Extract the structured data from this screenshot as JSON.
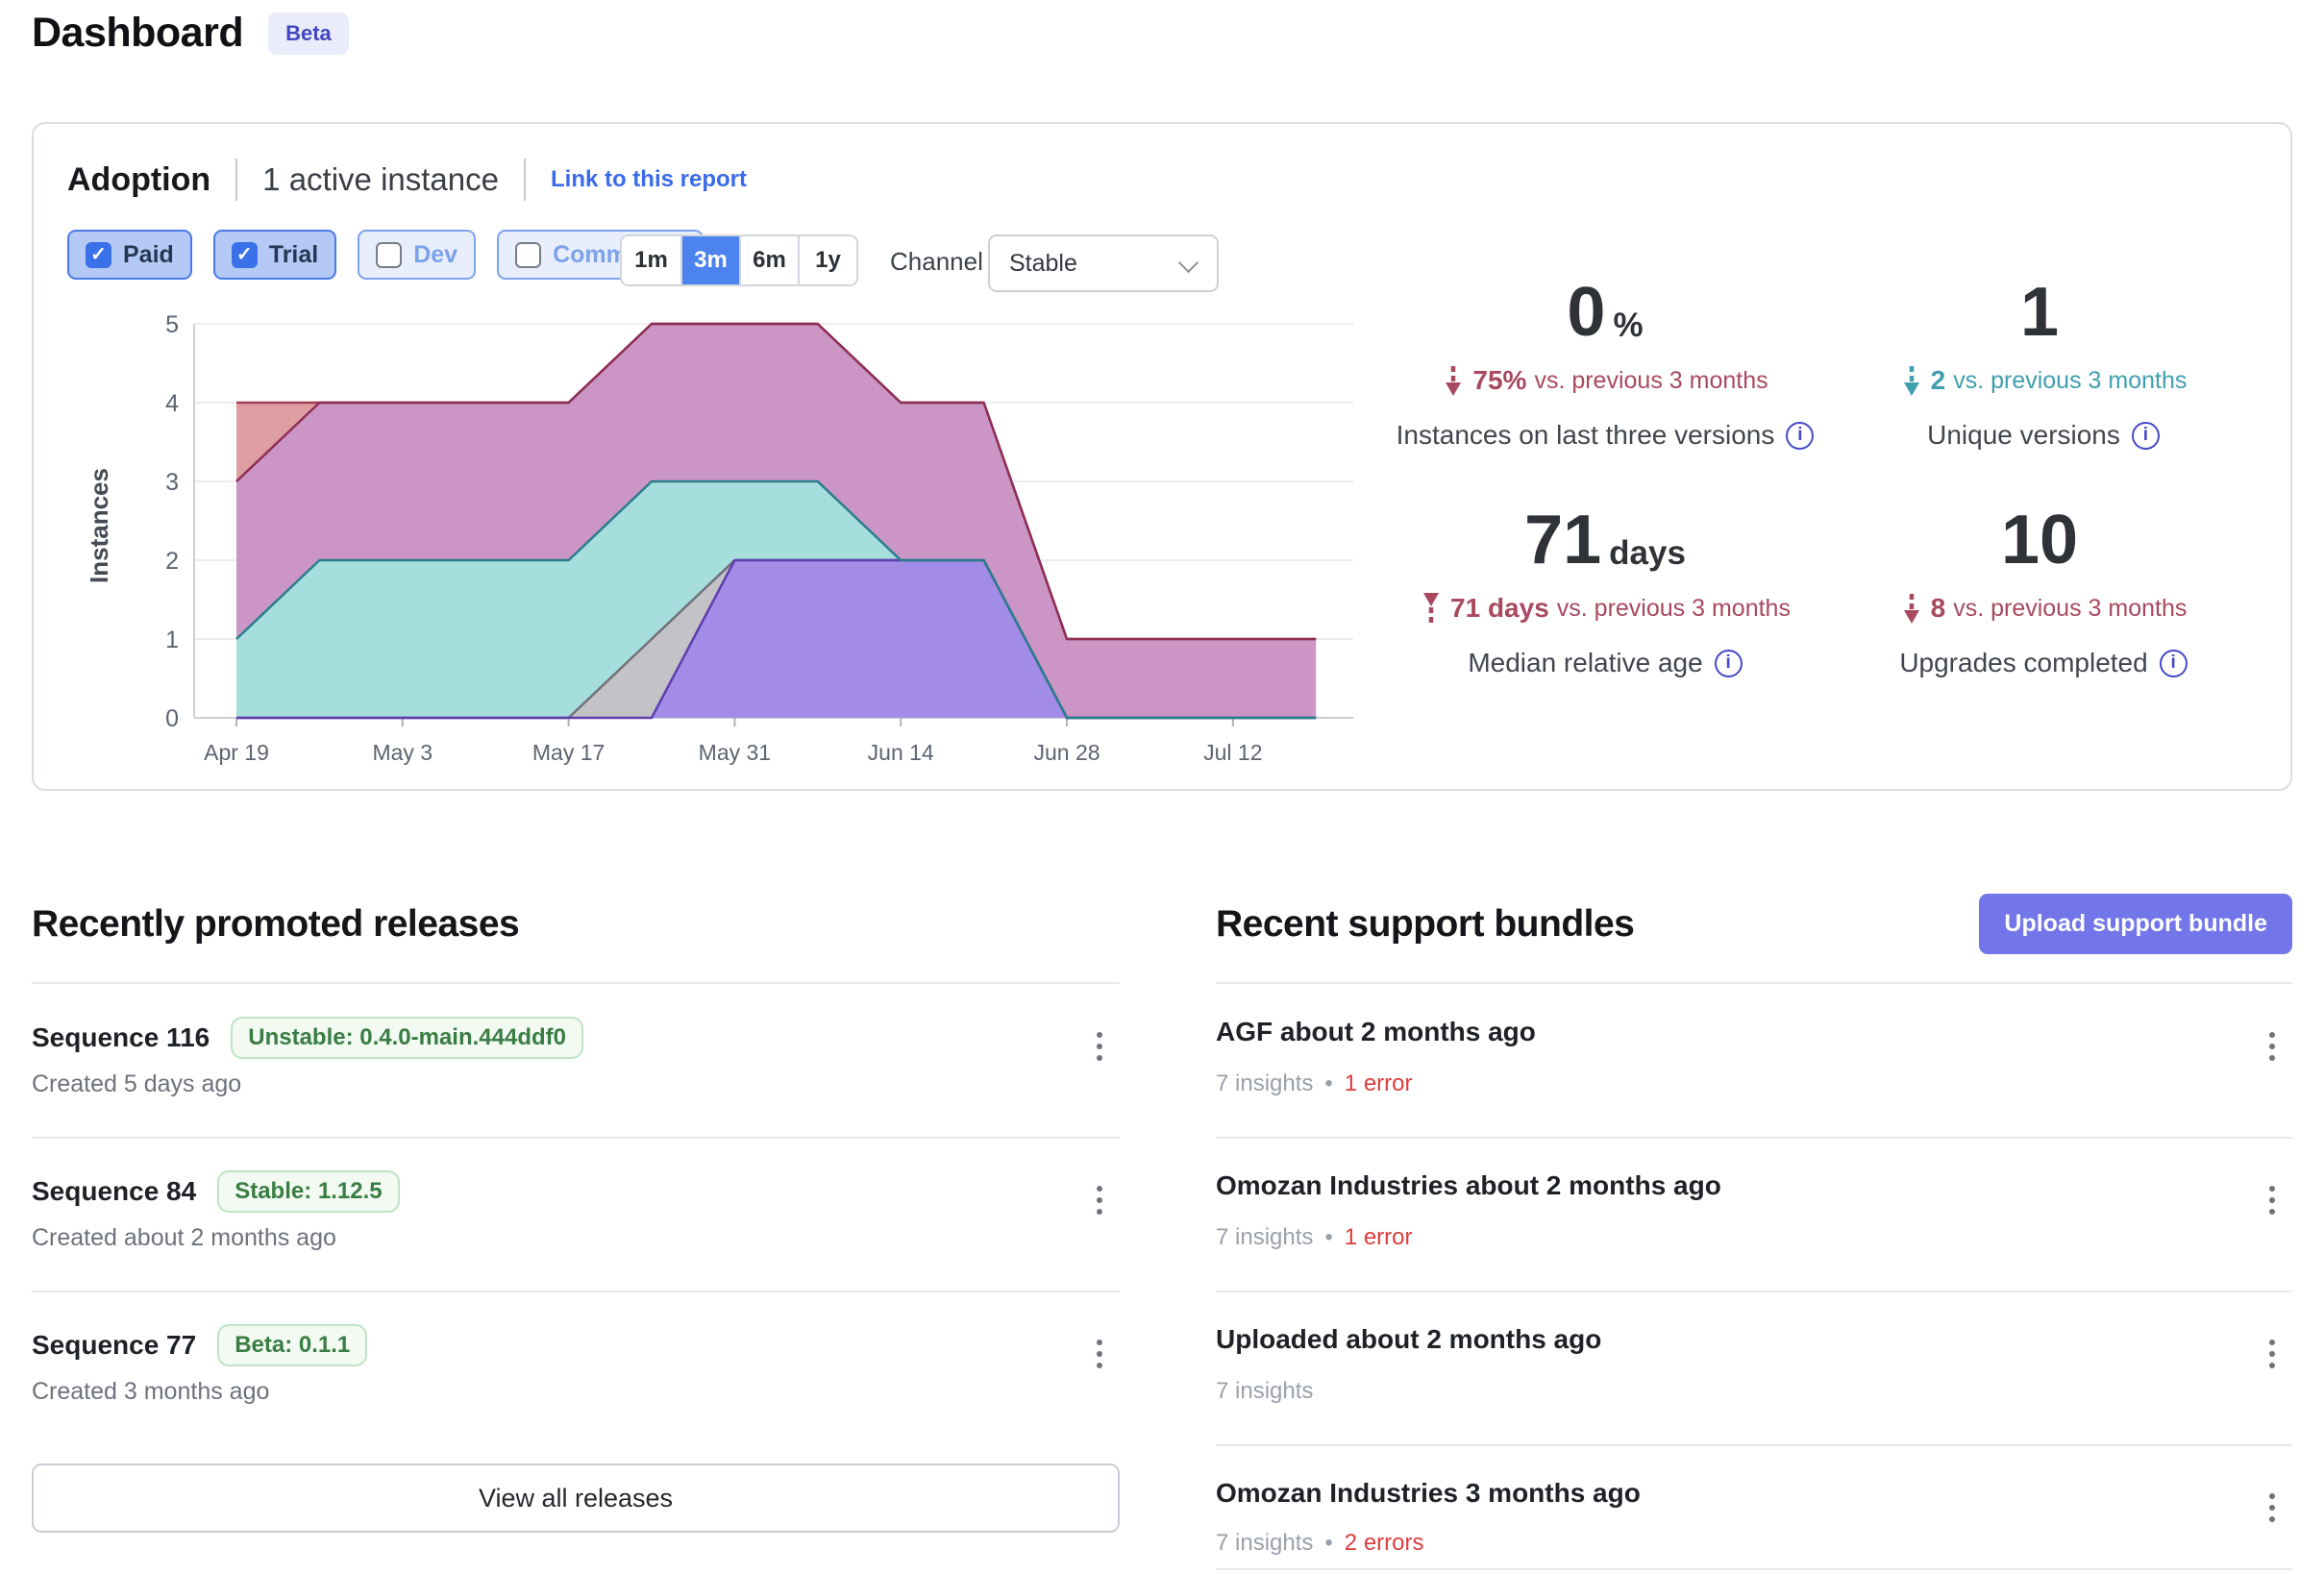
{
  "page": {
    "title": "Dashboard",
    "badge": "Beta"
  },
  "adoption": {
    "title": "Adoption",
    "active_count": "1 active instance",
    "link": "Link to this report",
    "filters": [
      {
        "label": "Paid",
        "checked": true
      },
      {
        "label": "Trial",
        "checked": true
      },
      {
        "label": "Dev",
        "checked": false
      },
      {
        "label": "Community",
        "checked": false
      }
    ],
    "ranges": [
      {
        "label": "1m",
        "selected": false
      },
      {
        "label": "3m",
        "selected": true
      },
      {
        "label": "6m",
        "selected": false
      },
      {
        "label": "1y",
        "selected": false
      }
    ],
    "channel_label": "Channel",
    "channel_value": "Stable",
    "stats": [
      {
        "value": "0",
        "unit": "%",
        "trend": "down",
        "tone": "rose",
        "delta": "75%",
        "delta_suffix": "vs. previous 3 months",
        "label": "Instances on last three versions"
      },
      {
        "value": "1",
        "unit": "",
        "trend": "down",
        "tone": "teal",
        "delta": "2",
        "delta_suffix": "vs. previous 3 months",
        "label": "Unique versions"
      },
      {
        "value": "71",
        "unit": "days",
        "trend": "up",
        "tone": "rose",
        "delta": "71 days",
        "delta_suffix": "vs. previous 3 months",
        "label": "Median relative age"
      },
      {
        "value": "10",
        "unit": "",
        "trend": "down",
        "tone": "rose",
        "delta": "8",
        "delta_suffix": "vs. previous 3 months",
        "label": "Upgrades completed"
      }
    ]
  },
  "chart_data": {
    "type": "area",
    "stacked": true,
    "ylabel": "Instances",
    "ylim": [
      0,
      5
    ],
    "grid": true,
    "legend": "none",
    "x": [
      "Apr 19",
      "Apr 26",
      "May 3",
      "May 10",
      "May 17",
      "May 24",
      "May 31",
      "Jun 7",
      "Jun 14",
      "Jun 21",
      "Jun 28",
      "Jul 5",
      "Jul 12",
      "Jul 19"
    ],
    "x_tick_labels": [
      "Apr 19",
      "May 3",
      "May 17",
      "May 31",
      "Jun 14",
      "Jun 28",
      "Jul 12"
    ],
    "y_tick_labels": [
      "0",
      "1",
      "2",
      "3",
      "4",
      "5"
    ],
    "series": [
      {
        "name": "version-violet",
        "fill": "#a38ce8",
        "stroke": "#5e3dae",
        "values": [
          0,
          0,
          0,
          0,
          0,
          0,
          2,
          2,
          2,
          2,
          0,
          0,
          0,
          0
        ]
      },
      {
        "name": "version-gray",
        "fill": "#c3c2c7",
        "stroke": "#71707a",
        "values": [
          0,
          0,
          0,
          0,
          0,
          1,
          0,
          0,
          0,
          0,
          0,
          0,
          0,
          0
        ]
      },
      {
        "name": "version-teal",
        "fill": "#a5dedd",
        "stroke": "#2a7d8d",
        "values": [
          1,
          2,
          2,
          2,
          2,
          2,
          1,
          1,
          0,
          0,
          0,
          0,
          0,
          0
        ]
      },
      {
        "name": "version-magenta",
        "fill": "#cb96c5",
        "stroke": "#8e2e56",
        "values": [
          2,
          2,
          2,
          2,
          2,
          2,
          2,
          2,
          2,
          2,
          1,
          1,
          1,
          1
        ]
      },
      {
        "name": "version-salmon",
        "fill": "#df9ea1",
        "stroke": "#a23d55",
        "values": [
          1,
          0,
          0,
          0,
          0,
          0,
          0,
          0,
          0,
          0,
          0,
          0,
          0,
          0
        ]
      }
    ]
  },
  "releases": {
    "heading": "Recently promoted releases",
    "view_all": "View all releases",
    "items": [
      {
        "title": "Sequence 116",
        "badge": "Unstable: 0.4.0-main.444ddf0",
        "created": "Created 5 days ago"
      },
      {
        "title": "Sequence 84",
        "badge": "Stable: 1.12.5",
        "created": "Created about 2 months ago"
      },
      {
        "title": "Sequence 77",
        "badge": "Beta: 0.1.1",
        "created": "Created 3 months ago"
      }
    ]
  },
  "bundles": {
    "heading": "Recent support bundles",
    "upload_button": "Upload support bundle",
    "items": [
      {
        "title": "AGF about 2 months ago",
        "insights": "7 insights",
        "errors": "1 error"
      },
      {
        "title": "Omozan Industries about 2 months ago",
        "insights": "7 insights",
        "errors": "1 error"
      },
      {
        "title": "Uploaded about 2 months ago",
        "insights": "7 insights",
        "errors": null
      },
      {
        "title": "Omozan Industries 3 months ago",
        "insights": "7 insights",
        "errors": "2 errors"
      }
    ]
  },
  "colors": {
    "accent_blue": "#4d83ef",
    "link_blue": "#3a6be8",
    "button_indigo": "#7276e8",
    "rose": "#a8495f",
    "teal": "#3f9fae",
    "error_red": "#dc3d3d",
    "badge_green_text": "#3a7d44",
    "beta_badge_text": "#4347bf"
  }
}
